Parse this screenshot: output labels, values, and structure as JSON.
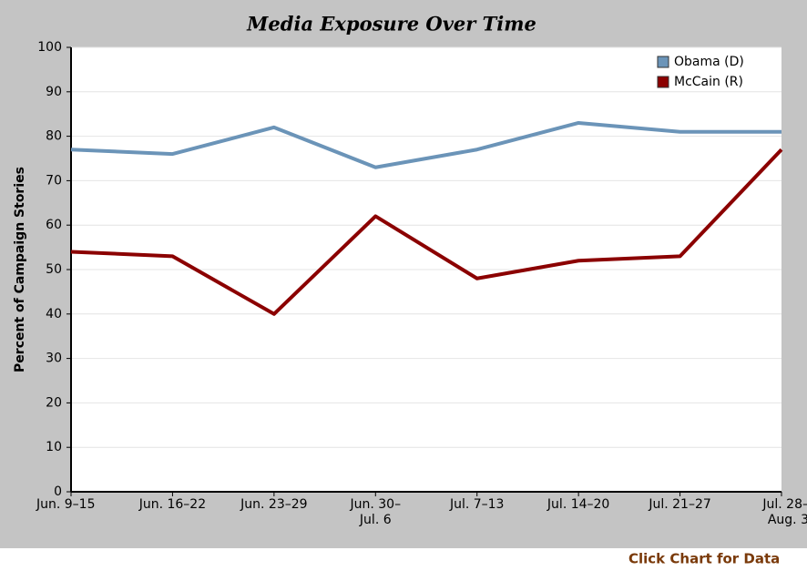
{
  "chart_data": {
    "type": "line",
    "title": "Media Exposure Over Time",
    "ylabel": "Percent of Campaign Stories",
    "categories": [
      "Jun. 9–15",
      "Jun. 16–22",
      "Jun. 23–29",
      "Jun. 30–\nJul. 6",
      "Jul. 7–13",
      "Jul. 14–20",
      "Jul. 21–27",
      "Jul. 28–\nAug. 3"
    ],
    "series": [
      {
        "name": "Obama (D)",
        "color": "#6b94b8",
        "values": [
          77,
          76,
          82,
          73,
          77,
          83,
          81,
          81
        ]
      },
      {
        "name": "McCain (R)",
        "color": "#8b0000",
        "values": [
          54,
          53,
          40,
          62,
          48,
          52,
          53,
          77
        ]
      }
    ],
    "ylim": [
      0,
      100
    ],
    "yticks": [
      0,
      10,
      20,
      30,
      40,
      50,
      60,
      70,
      80,
      90,
      100
    ],
    "grid": true,
    "legend": "upper right"
  },
  "footer_link": "Click Chart for Data"
}
